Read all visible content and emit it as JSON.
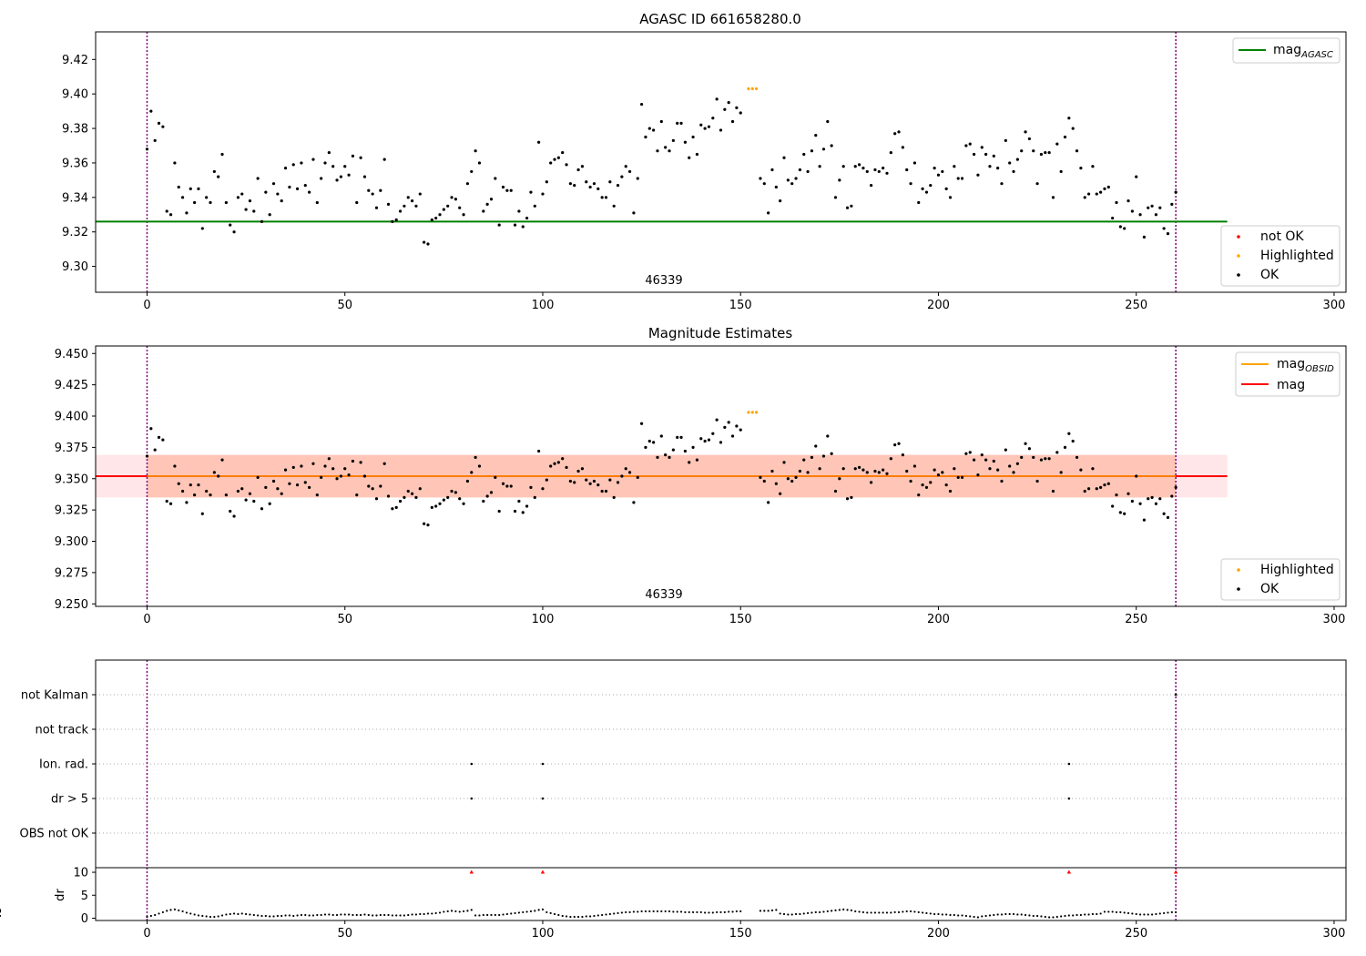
{
  "chart_data": [
    {
      "type": "scatter",
      "title": "AGASC ID 661658280.0",
      "annotation": "46339",
      "xlim": [
        -13,
        303
      ],
      "ylim": [
        9.285,
        9.436
      ],
      "xticks": [
        0,
        50,
        100,
        150,
        200,
        250,
        300
      ],
      "yticks": [
        9.3,
        9.32,
        9.34,
        9.36,
        9.38,
        9.4,
        9.42
      ],
      "ytick_labels": [
        "9.30",
        "9.32",
        "9.34",
        "9.36",
        "9.38",
        "9.40",
        "9.42"
      ],
      "vlines": [
        0,
        260
      ],
      "hline": {
        "name": "mag_AGASC",
        "y": 9.326,
        "x": [
          -13,
          273
        ],
        "color": "#008000"
      },
      "legend_lines": [
        {
          "label": "mag",
          "sub": "AGASC",
          "color": "#008000"
        }
      ],
      "legend_points": [
        {
          "label": "not OK",
          "color": "#ff0000"
        },
        {
          "label": "Highlighted",
          "color": "#ffa500"
        },
        {
          "label": "OK",
          "color": "#000000"
        }
      ],
      "legend_positions": [
        "top-right",
        "lower-right"
      ],
      "series": [
        {
          "name": "OK",
          "color": "#000000",
          "x": [
            0,
            1,
            2,
            3,
            4,
            5,
            6,
            7,
            8,
            9,
            10,
            11,
            12,
            13,
            14,
            15,
            16,
            17,
            18,
            19,
            20,
            21,
            22,
            23,
            24,
            25,
            26,
            27,
            28,
            29,
            30,
            31,
            32,
            33,
            34,
            35,
            36,
            37,
            38,
            39,
            40,
            41,
            42,
            43,
            44,
            45,
            46,
            47,
            48,
            49,
            50,
            51,
            52,
            53,
            54,
            55,
            56,
            57,
            58,
            59,
            60,
            61,
            62,
            63,
            64,
            65,
            66,
            67,
            68,
            69,
            70,
            71,
            72,
            73,
            74,
            75,
            76,
            77,
            78,
            79,
            80,
            81,
            82,
            83,
            84,
            85,
            86,
            87,
            88,
            89,
            90,
            91,
            92,
            93,
            94,
            95,
            96,
            97,
            98,
            99,
            100,
            101,
            102,
            103,
            104,
            105,
            106,
            107,
            108,
            109,
            110,
            111,
            112,
            113,
            114,
            115,
            116,
            117,
            118,
            119,
            120,
            121,
            122,
            123,
            124,
            125,
            126,
            127,
            128,
            129,
            130,
            131,
            132,
            133,
            134,
            135,
            136,
            137,
            138,
            139,
            140,
            141,
            142,
            143,
            144,
            145,
            146,
            147,
            148,
            149,
            150,
            155,
            156,
            157,
            158,
            159,
            160,
            161,
            162,
            163,
            164,
            165,
            166,
            167,
            168,
            169,
            170,
            171,
            172,
            173,
            174,
            175,
            176,
            177,
            178,
            179,
            180,
            181,
            182,
            183,
            184,
            185,
            186,
            187,
            188,
            189,
            190,
            191,
            192,
            193,
            194,
            195,
            196,
            197,
            198,
            199,
            200,
            201,
            202,
            203,
            204,
            205,
            206,
            207,
            208,
            209,
            210,
            211,
            212,
            213,
            214,
            215,
            216,
            217,
            218,
            219,
            220,
            221,
            222,
            223,
            224,
            225,
            226,
            227,
            228,
            229,
            230,
            231,
            232,
            233,
            234,
            235,
            236,
            237,
            238,
            239,
            240,
            241,
            242,
            243,
            244,
            245,
            246,
            247,
            248,
            249,
            250,
            251,
            252,
            253,
            254,
            255,
            256,
            257,
            258,
            259,
            260
          ],
          "y": [
            9.368,
            9.39,
            9.373,
            9.383,
            9.381,
            9.332,
            9.33,
            9.36,
            9.346,
            9.34,
            9.331,
            9.345,
            9.337,
            9.345,
            9.322,
            9.34,
            9.337,
            9.355,
            9.352,
            9.365,
            9.337,
            9.324,
            9.32,
            9.34,
            9.342,
            9.333,
            9.338,
            9.332,
            9.351,
            9.326,
            9.343,
            9.33,
            9.348,
            9.342,
            9.338,
            9.357,
            9.346,
            9.359,
            9.345,
            9.36,
            9.347,
            9.343,
            9.362,
            9.337,
            9.351,
            9.36,
            9.366,
            9.358,
            9.35,
            9.352,
            9.358,
            9.353,
            9.364,
            9.337,
            9.363,
            9.352,
            9.344,
            9.342,
            9.334,
            9.344,
            9.362,
            9.336,
            9.326,
            9.327,
            9.332,
            9.335,
            9.34,
            9.338,
            9.335,
            9.342,
            9.314,
            9.313,
            9.327,
            9.328,
            9.33,
            9.333,
            9.335,
            9.34,
            9.339,
            9.334,
            9.33,
            9.348,
            9.355,
            9.367,
            9.36,
            9.332,
            9.336,
            9.339,
            9.351,
            9.324,
            9.346,
            9.344,
            9.344,
            9.324,
            9.332,
            9.323,
            9.328,
            9.343,
            9.335,
            9.372,
            9.342,
            9.349,
            9.36,
            9.362,
            9.363,
            9.366,
            9.359,
            9.348,
            9.347,
            9.356,
            9.358,
            9.349,
            9.346,
            9.348,
            9.345,
            9.34,
            9.34,
            9.349,
            9.335,
            9.347,
            9.352,
            9.358,
            9.355,
            9.331,
            9.351,
            9.394,
            9.375,
            9.38,
            9.379,
            9.367,
            9.384,
            9.369,
            9.367,
            9.373,
            9.383,
            9.383,
            9.372,
            9.363,
            9.375,
            9.365,
            9.382,
            9.38,
            9.381,
            9.386,
            9.397,
            9.379,
            9.391,
            9.395,
            9.384,
            9.392,
            9.389,
            9.351,
            9.348,
            9.331,
            9.356,
            9.346,
            9.338,
            9.363,
            9.35,
            9.348,
            9.351,
            9.356,
            9.365,
            9.355,
            9.367,
            9.376,
            9.358,
            9.368,
            9.384,
            9.37,
            9.34,
            9.35,
            9.358,
            9.334,
            9.335,
            9.358,
            9.359,
            9.357,
            9.355,
            9.347,
            9.356,
            9.355,
            9.357,
            9.354,
            9.366,
            9.377,
            9.378,
            9.369,
            9.356,
            9.348,
            9.36,
            9.337,
            9.345,
            9.343,
            9.347,
            9.357,
            9.353,
            9.355,
            9.345,
            9.34,
            9.358,
            9.351,
            9.351,
            9.37,
            9.371,
            9.365,
            9.353,
            9.369,
            9.365,
            9.358,
            9.364,
            9.357,
            9.348,
            9.373,
            9.36,
            9.355,
            9.362,
            9.367,
            9.378,
            9.374,
            9.367,
            9.348,
            9.365,
            9.366,
            9.366,
            9.34,
            9.371,
            9.355,
            9.375,
            9.386,
            9.38,
            9.367,
            9.357,
            9.34,
            9.342,
            9.358,
            9.342,
            9.343,
            9.345,
            9.346,
            9.328,
            9.337,
            9.323,
            9.322,
            9.338,
            9.332,
            9.352,
            9.33,
            9.317,
            9.334,
            9.335,
            9.33,
            9.334,
            9.322,
            9.319,
            9.336,
            9.343
          ]
        },
        {
          "name": "Highlighted",
          "color": "#ffa500",
          "x": [
            152,
            153,
            154
          ],
          "y": [
            9.403,
            9.403,
            9.403
          ]
        }
      ]
    },
    {
      "type": "scatter",
      "title": "Magnitude Estimates",
      "annotation": "46339",
      "xlim": [
        -13,
        303
      ],
      "ylim": [
        9.248,
        9.456
      ],
      "xticks": [
        0,
        50,
        100,
        150,
        200,
        250,
        300
      ],
      "yticks": [
        9.25,
        9.275,
        9.3,
        9.325,
        9.35,
        9.375,
        9.4,
        9.425,
        9.45
      ],
      "ytick_labels": [
        "9.250",
        "9.275",
        "9.300",
        "9.325",
        "9.350",
        "9.375",
        "9.400",
        "9.425",
        "9.450"
      ],
      "vlines": [
        0,
        260
      ],
      "mag": 9.352,
      "mag_err": 0.017,
      "mag_obsid": 9.352,
      "mag_obsid_err": 0.017,
      "band_x_mag": [
        -13,
        273
      ],
      "band_x_obsid": [
        0,
        260
      ],
      "band_colors": {
        "mag": "#ffb6c1",
        "obsid": "#ffa07a"
      },
      "legend_lines": [
        {
          "label": "mag",
          "sub": "OBSID",
          "color": "#ffa500"
        },
        {
          "label": "mag",
          "sub": "",
          "color": "#ff0000"
        }
      ],
      "legend_points": [
        {
          "label": "Highlighted",
          "color": "#ffa500"
        },
        {
          "label": "OK",
          "color": "#000000"
        }
      ],
      "legend_positions": [
        "top-right",
        "lower-right"
      ]
    },
    {
      "type": "scatter",
      "title": "",
      "categories": [
        "not Kalman",
        "not track",
        "Ion. rad.",
        "dr > 5",
        "OBS not OK"
      ],
      "flags": [
        {
          "category": "not Kalman",
          "x": [
            260
          ]
        },
        {
          "category": "Ion. rad.",
          "x": [
            82,
            100,
            233
          ]
        },
        {
          "category": "dr > 5",
          "x": [
            82,
            100,
            233
          ]
        }
      ],
      "vlines": [
        0,
        260
      ],
      "grid": "horizontal dotted"
    },
    {
      "type": "scatter",
      "title": "",
      "ylabel": "dr",
      "xlim": [
        -13,
        303
      ],
      "ylim": [
        -0.5,
        11
      ],
      "xticks": [
        0,
        50,
        100,
        150,
        200,
        250,
        300
      ],
      "yticks": [
        0,
        5,
        10
      ],
      "ytick_labels": [
        "0",
        "5",
        "10"
      ],
      "vlines": [
        0,
        260
      ],
      "clipped_points": {
        "color": "#ff0000",
        "x": [
          82,
          100,
          233,
          260
        ],
        "y": [
          10,
          10,
          10,
          10
        ]
      },
      "dr": [
        0.3,
        0.5,
        0.7,
        1.0,
        1.3,
        1.6,
        1.8,
        1.9,
        1.7,
        1.5,
        1.2,
        1.0,
        0.8,
        0.6,
        0.5,
        0.4,
        0.3,
        0.3,
        0.4,
        0.6,
        0.8,
        0.9,
        1.0,
        0.9,
        1.0,
        0.9,
        0.8,
        0.7,
        0.6,
        0.5,
        0.5,
        0.4,
        0.4,
        0.5,
        0.5,
        0.6,
        0.6,
        0.5,
        0.6,
        0.7,
        0.7,
        0.6,
        0.6,
        0.7,
        0.7,
        0.8,
        0.8,
        0.7,
        0.7,
        0.8,
        0.8,
        0.8,
        0.7,
        0.7,
        0.7,
        0.8,
        0.7,
        0.6,
        0.6,
        0.7,
        0.7,
        0.7,
        0.6,
        0.6,
        0.6,
        0.6,
        0.7,
        0.8,
        0.8,
        0.9,
        0.9,
        1.0,
        1.0,
        1.1,
        1.2,
        1.4,
        1.5,
        1.6,
        1.5,
        1.4,
        1.5,
        1.6,
        1.8,
        0.6,
        0.6,
        0.7,
        0.7,
        0.7,
        0.7,
        0.7,
        0.8,
        0.9,
        1.0,
        1.1,
        1.2,
        1.3,
        1.4,
        1.5,
        1.6,
        1.8,
        1.9,
        1.3,
        1.1,
        0.9,
        0.7,
        0.5,
        0.4,
        0.3,
        0.3,
        0.3,
        0.3,
        0.4,
        0.4,
        0.5,
        0.6,
        0.7,
        0.8,
        0.9,
        1.0,
        1.1,
        1.2,
        1.3,
        1.3,
        1.4,
        1.4,
        1.5,
        1.5,
        1.5,
        1.5,
        1.5,
        1.5,
        1.5,
        1.5,
        1.4,
        1.4,
        1.4,
        1.3,
        1.3,
        1.3,
        1.3,
        1.3,
        1.2,
        1.2,
        1.2,
        1.3,
        1.3,
        1.3,
        1.4,
        1.4,
        1.5,
        1.5,
        1.6,
        1.6,
        1.6,
        1.7,
        1.8,
        1.0,
        0.9,
        0.8,
        0.8,
        0.9,
        0.9,
        1.0,
        1.1,
        1.2,
        1.3,
        1.3,
        1.4,
        1.5,
        1.6,
        1.7,
        1.8,
        1.9,
        1.8,
        1.7,
        1.5,
        1.4,
        1.3,
        1.2,
        1.2,
        1.2,
        1.2,
        1.2,
        1.2,
        1.2,
        1.3,
        1.3,
        1.4,
        1.5,
        1.5,
        1.4,
        1.3,
        1.2,
        1.1,
        1.0,
        0.9,
        0.9,
        0.8,
        0.8,
        0.7,
        0.7,
        0.6,
        0.6,
        0.5,
        0.4,
        0.3,
        0.2,
        0.4,
        0.5,
        0.6,
        0.7,
        0.8,
        0.8,
        0.9,
        0.9,
        0.9,
        0.8,
        0.8,
        0.7,
        0.6,
        0.5,
        0.5,
        0.4,
        0.3,
        0.2,
        0.2,
        0.3,
        0.4,
        0.5,
        0.6,
        0.6,
        0.7,
        0.7,
        0.8,
        0.8,
        0.9,
        0.9,
        1.0,
        1.4,
        1.4,
        1.4,
        1.3,
        1.3,
        1.2,
        1.1,
        1.0,
        0.9,
        0.8,
        0.8,
        0.8,
        0.8,
        0.9,
        1.0,
        1.1,
        1.2,
        1.3,
        1.3,
        1.4,
        1.5,
        1.6,
        1.7,
        1.8,
        0.5
      ]
    }
  ]
}
